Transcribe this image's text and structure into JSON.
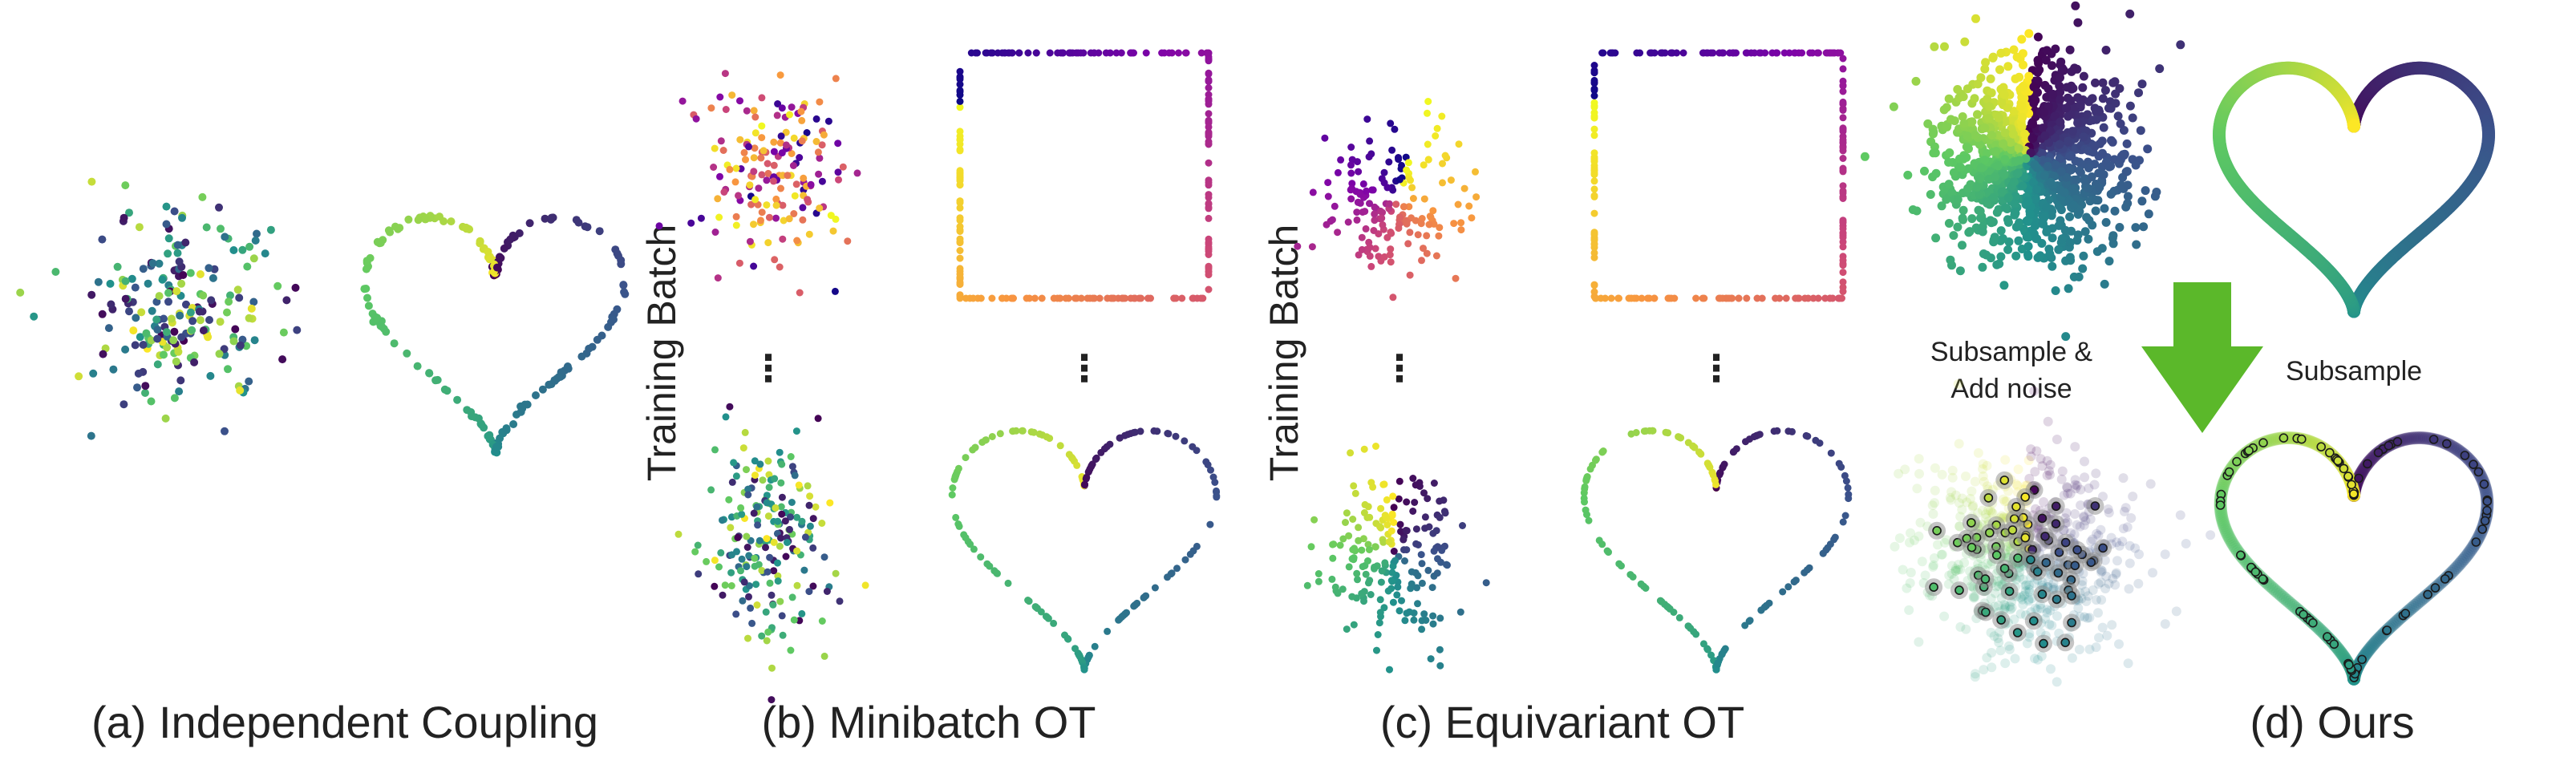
{
  "captions": {
    "a": "(a) Independent Coupling",
    "b": "(b) Minibatch OT",
    "c": "(c) Equivariant OT",
    "d": "(d) Ours"
  },
  "side_labels": {
    "b": "Training Batch",
    "c": "Training Batch"
  },
  "ellipsis": "⋮",
  "annotations": {
    "subsample_noise": [
      "Subsample &",
      "Add noise"
    ],
    "subsample": "Subsample"
  },
  "colors": {
    "arrow": "#5bb82a",
    "outline": "#1a1a1a",
    "viridis": [
      "#440154",
      "#3b528b",
      "#21918c",
      "#5ec962",
      "#fde725"
    ],
    "plasma": [
      "#0d0887",
      "#7e03a8",
      "#cc4778",
      "#f89540",
      "#f0f921"
    ]
  },
  "icons": {
    "arrow": "down-arrow-icon"
  },
  "panels": {
    "a": {
      "source": "gaussian noise",
      "target": "heart",
      "coloring": "random (independent)"
    },
    "b": {
      "top": {
        "source": "gaussian",
        "target": "square",
        "coloring": "random"
      },
      "bottom": {
        "source": "gaussian",
        "target": "heart",
        "coloring": "random"
      }
    },
    "c": {
      "top": {
        "source": "gaussian",
        "target": "square",
        "coloring": "by angle"
      },
      "bottom": {
        "source": "gaussian",
        "target": "heart",
        "coloring": "by angle"
      }
    },
    "d": {
      "top": {
        "source": "gaussian",
        "target": "heart",
        "coloring": "by angle"
      },
      "bottom": {
        "source": "subsampled + noise",
        "target": "subsampled heart",
        "coloring": "highlighted"
      }
    }
  }
}
